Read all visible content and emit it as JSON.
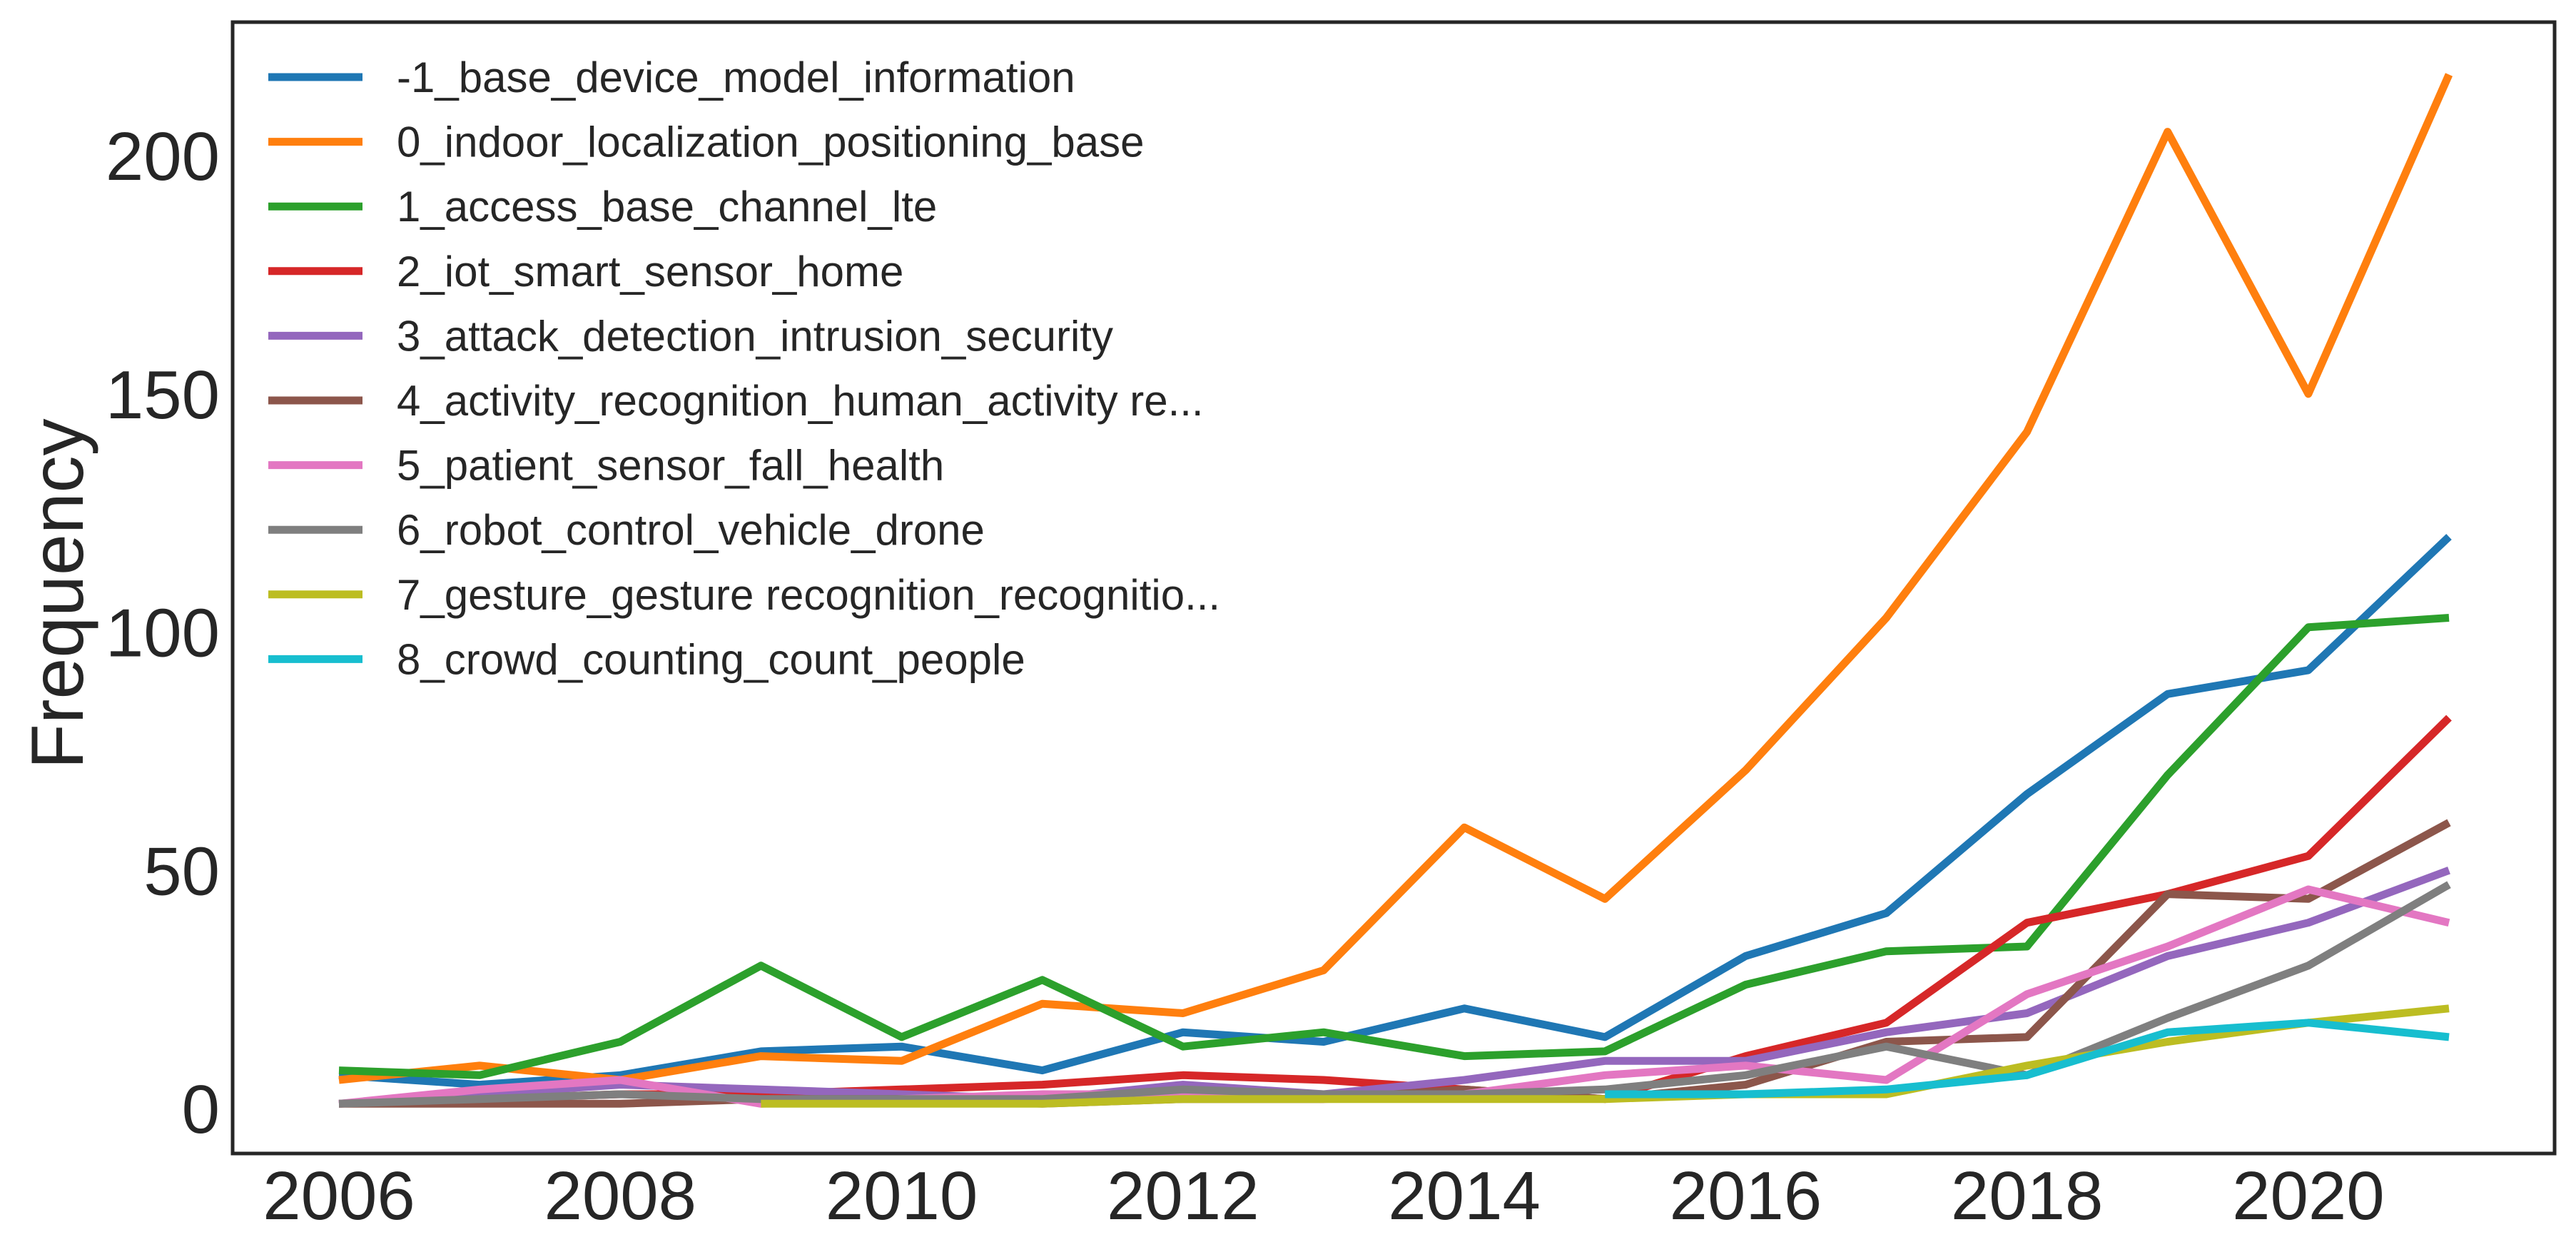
{
  "chart_data": {
    "type": "line",
    "title": "",
    "xlabel": "",
    "ylabel": "Frequency",
    "x": [
      2006,
      2007,
      2008,
      2009,
      2010,
      2011,
      2012,
      2013,
      2014,
      2015,
      2016,
      2017,
      2018,
      2019,
      2020,
      2021
    ],
    "xlim": [
      2006,
      2021
    ],
    "ylim": [
      0,
      220
    ],
    "xticks": [
      2006,
      2008,
      2010,
      2012,
      2014,
      2016,
      2018,
      2020
    ],
    "yticks": [
      0,
      50,
      100,
      150,
      200
    ],
    "grid": false,
    "legend_position": "top-left",
    "series": [
      {
        "name": "-1_base_device_model_information",
        "color": "#1f77b4",
        "x": [
          2006,
          2007,
          2008,
          2009,
          2010,
          2011,
          2012,
          2013,
          2014,
          2015,
          2016,
          2017,
          2018,
          2019,
          2020,
          2021
        ],
        "values": [
          7,
          5,
          7,
          12,
          13,
          8,
          16,
          14,
          21,
          15,
          32,
          41,
          66,
          87,
          92,
          120
        ]
      },
      {
        "name": "0_indoor_localization_positioning_base",
        "color": "#ff7f0e",
        "x": [
          2006,
          2007,
          2008,
          2009,
          2010,
          2011,
          2012,
          2013,
          2014,
          2015,
          2016,
          2017,
          2018,
          2019,
          2020,
          2021
        ],
        "values": [
          6,
          9,
          6,
          11,
          10,
          22,
          20,
          29,
          59,
          44,
          71,
          103,
          142,
          205,
          150,
          217
        ]
      },
      {
        "name": "1_access_base_channel_lte",
        "color": "#2ca02c",
        "x": [
          2006,
          2007,
          2008,
          2009,
          2010,
          2011,
          2012,
          2013,
          2014,
          2015,
          2016,
          2017,
          2018,
          2019,
          2020,
          2021
        ],
        "values": [
          8,
          7,
          14,
          30,
          15,
          27,
          13,
          16,
          11,
          12,
          26,
          33,
          34,
          70,
          101,
          103
        ]
      },
      {
        "name": "2_iot_smart_sensor_home",
        "color": "#d62728",
        "x": [
          2006,
          2007,
          2008,
          2009,
          2010,
          2011,
          2012,
          2013,
          2014,
          2015,
          2016,
          2017,
          2018,
          2019,
          2020,
          2021
        ],
        "values": [
          1,
          2,
          3,
          3,
          4,
          5,
          7,
          6,
          4,
          2,
          11,
          18,
          39,
          45,
          53,
          82
        ]
      },
      {
        "name": "3_attack_detection_intrusion_security",
        "color": "#9467bd",
        "x": [
          2006,
          2007,
          2008,
          2009,
          2010,
          2011,
          2012,
          2013,
          2014,
          2015,
          2016,
          2017,
          2018,
          2019,
          2020,
          2021
        ],
        "values": [
          1,
          3,
          5,
          4,
          3,
          2,
          5,
          3,
          6,
          10,
          10,
          16,
          20,
          32,
          39,
          50
        ]
      },
      {
        "name": "4_activity_recognition_human_activity re...",
        "color": "#8c564b",
        "x": [
          2006,
          2007,
          2008,
          2009,
          2010,
          2011,
          2012,
          2013,
          2014,
          2015,
          2016,
          2017,
          2018,
          2019,
          2020,
          2021
        ],
        "values": [
          1,
          1,
          1,
          2,
          2,
          1,
          2,
          2,
          4,
          2,
          5,
          14,
          15,
          45,
          44,
          60
        ]
      },
      {
        "name": "5_patient_sensor_fall_health",
        "color": "#e377c2",
        "x": [
          2006,
          2007,
          2008,
          2009,
          2010,
          2011,
          2012,
          2013,
          2014,
          2015,
          2016,
          2017,
          2018,
          2019,
          2020,
          2021
        ],
        "values": [
          1,
          4,
          6,
          1,
          2,
          3,
          3,
          2,
          3,
          7,
          9,
          6,
          24,
          34,
          46,
          39
        ]
      },
      {
        "name": "6_robot_control_vehicle_drone",
        "color": "#7f7f7f",
        "x": [
          2006,
          2007,
          2008,
          2009,
          2010,
          2011,
          2012,
          2013,
          2014,
          2015,
          2016,
          2017,
          2018,
          2019,
          2020,
          2021
        ],
        "values": [
          1,
          2,
          3,
          2,
          2,
          2,
          4,
          3,
          3,
          4,
          7,
          13,
          7,
          19,
          30,
          47
        ]
      },
      {
        "name": "7_gesture_gesture recognition_recognitio...",
        "color": "#bcbd22",
        "x": [
          2009,
          2010,
          2011,
          2012,
          2013,
          2014,
          2015,
          2016,
          2017,
          2018,
          2019,
          2020,
          2021
        ],
        "values": [
          1,
          1,
          1,
          2,
          2,
          2,
          2,
          3,
          3,
          9,
          14,
          18,
          21
        ]
      },
      {
        "name": "8_crowd_counting_count_people",
        "color": "#17becf",
        "x": [
          2015,
          2016,
          2017,
          2018,
          2019,
          2020,
          2021
        ],
        "values": [
          3,
          3,
          4,
          7,
          16,
          18,
          15
        ]
      }
    ]
  }
}
